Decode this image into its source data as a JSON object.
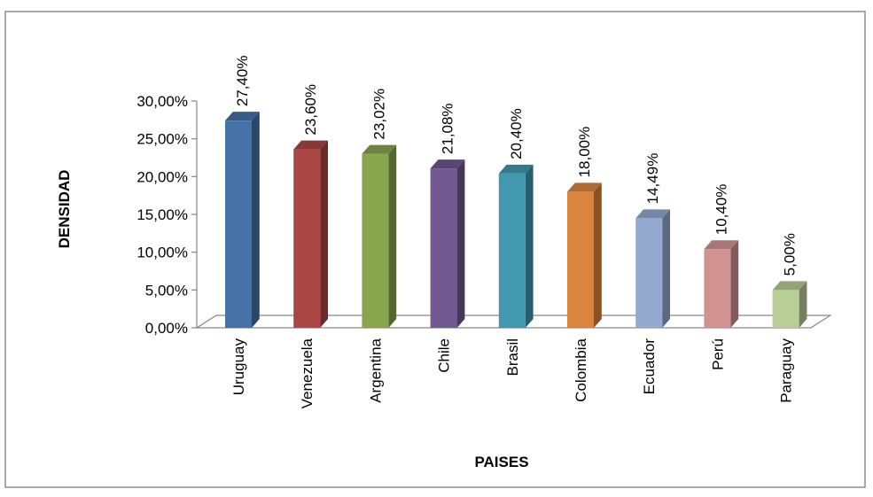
{
  "chart_data": {
    "type": "bar",
    "xlabel": "PAISES",
    "ylabel": "DENSIDAD",
    "categories": [
      "Uruguay",
      "Venezuela",
      "Argentina",
      "Chile",
      "Brasil",
      "Colombia",
      "Ecuador",
      "Perú",
      "Paraguay"
    ],
    "values": [
      27.4,
      23.6,
      23.02,
      21.08,
      20.4,
      18.0,
      14.49,
      10.4,
      5.0
    ],
    "data_labels": [
      "27,40%",
      "23,60%",
      "23,02%",
      "21,08%",
      "20,40%",
      "18,00%",
      "14,49%",
      "10,40%",
      "5,00%"
    ],
    "yticks": [
      0,
      5,
      10,
      15,
      20,
      25,
      30
    ],
    "ytick_labels": [
      "0,00%",
      "5,00%",
      "10,00%",
      "15,00%",
      "20,00%",
      "25,00%",
      "30,00%"
    ],
    "ylim": [
      0,
      30
    ],
    "grid": false,
    "legend": "none",
    "colors": [
      "#4572A7",
      "#AA4643",
      "#89A54E",
      "#71588F",
      "#4198AF",
      "#DB843D",
      "#93A9CF",
      "#D19392",
      "#B9CD96"
    ]
  }
}
